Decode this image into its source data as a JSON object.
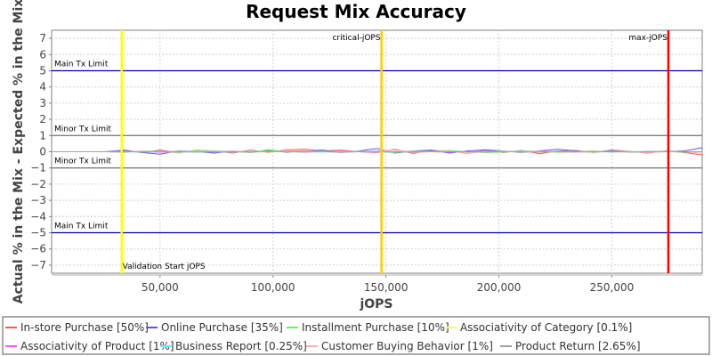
{
  "chart_data": {
    "type": "line",
    "title": "Request Mix Accuracy",
    "xlabel": "jOPS",
    "ylabel": "Actual % in the Mix - Expected % in the Mix",
    "xlim": [
      2000,
      290000
    ],
    "ylim": [
      -7.5,
      7.5
    ],
    "xticks": [
      50000,
      100000,
      150000,
      200000,
      250000
    ],
    "xtick_labels": [
      "50,000",
      "100,000",
      "150,000",
      "200,000",
      "250,000"
    ],
    "yticks": [
      -7,
      -6,
      -5,
      -4,
      -3,
      -2,
      -1,
      0,
      1,
      2,
      3,
      4,
      5,
      6,
      7
    ],
    "grid": true,
    "legend_position": "bottom",
    "x": [
      2000,
      10000,
      18000,
      26000,
      34000,
      42000,
      50000,
      58000,
      66000,
      74000,
      82000,
      90000,
      98000,
      106000,
      114000,
      122000,
      130000,
      138000,
      146000,
      154000,
      162000,
      170000,
      178000,
      186000,
      194000,
      202000,
      210000,
      218000,
      226000,
      234000,
      242000,
      250000,
      258000,
      266000,
      274000,
      282000,
      290000
    ],
    "series": [
      {
        "name": "In-store Purchase [50%]",
        "color": "#ff5555",
        "values": [
          0,
          0,
          0,
          0,
          0.05,
          -0.05,
          0.1,
          -0.05,
          0.08,
          0.05,
          -0.08,
          0.1,
          -0.05,
          0.12,
          0.15,
          0.05,
          0.1,
          0,
          -0.05,
          0.15,
          -0.1,
          0.08,
          0.05,
          -0.1,
          0.1,
          -0.05,
          0.08,
          -0.12,
          0.05,
          0.08,
          -0.05,
          0.1,
          0.02,
          -0.08,
          0.05,
          -0.05,
          -0.2
        ]
      },
      {
        "name": "Online Purchase [35%]",
        "color": "#5555ff",
        "values": [
          0,
          0,
          0,
          0,
          0.1,
          -0.05,
          -0.15,
          0.05,
          0.02,
          -0.08,
          0.05,
          -0.05,
          0.08,
          -0.03,
          0.05,
          0.1,
          -0.05,
          0.05,
          0.2,
          -0.08,
          0.05,
          0.1,
          -0.08,
          0.05,
          0.12,
          0.05,
          -0.05,
          0.05,
          0.15,
          0.05,
          -0.03,
          0.08,
          -0.02,
          0.02,
          0,
          0.05,
          0.25
        ]
      },
      {
        "name": "Installment Purchase [10%]",
        "color": "#55ff55",
        "values": [
          0,
          0,
          0,
          0,
          -0.05,
          0.05,
          0.03,
          -0.08,
          0.1,
          0.05,
          0.02,
          -0.05,
          0.12,
          0,
          -0.03,
          0.05,
          -0.05,
          0.02,
          0,
          -0.05,
          0.05,
          0.02,
          0.08,
          0,
          -0.05,
          -0.02,
          0.05,
          0.03,
          -0.05,
          0,
          0.05,
          -0.03,
          0.02,
          -0.02,
          0,
          -0.02,
          0
        ]
      },
      {
        "name": "Associativity of Category [0.1%]",
        "color": "#ffff55",
        "values": [
          0,
          0,
          0,
          0,
          0,
          0.02,
          0,
          -0.02,
          0,
          0.02,
          0,
          0,
          -0.02,
          0,
          0.02,
          0,
          0,
          0,
          0.02,
          0,
          0,
          -0.02,
          0,
          0,
          0.02,
          0,
          0,
          0,
          -0.02,
          0,
          0,
          0.02,
          0,
          0,
          0,
          0,
          0
        ]
      },
      {
        "name": "Associativity of Product [1%]",
        "color": "#ff55ff",
        "values": [
          0,
          0,
          0,
          0,
          0.03,
          0,
          -0.03,
          0.02,
          0,
          -0.02,
          0.03,
          0,
          0,
          0.02,
          -0.02,
          0,
          0.03,
          0,
          -0.02,
          0,
          0.02,
          0,
          -0.03,
          0,
          0.02,
          0,
          0,
          0.03,
          0,
          -0.02,
          0,
          0.02,
          0,
          0,
          0,
          0,
          0
        ]
      },
      {
        "name": "Business Report [0.25%]",
        "color": "#55ffff",
        "values": [
          0,
          0,
          0,
          0,
          0,
          -0.02,
          0,
          0.02,
          0,
          0,
          -0.02,
          0.02,
          0,
          0,
          0,
          -0.02,
          0,
          0.02,
          0,
          0,
          0,
          0.02,
          0,
          -0.02,
          0,
          0,
          0.02,
          0,
          0,
          0,
          -0.02,
          0,
          0,
          0.02,
          0,
          0,
          0
        ]
      },
      {
        "name": "Customer Buying Behavior [1%]",
        "color": "#ffafaf",
        "values": [
          0,
          0,
          0,
          0,
          -0.03,
          0.05,
          0,
          -0.05,
          0.03,
          0,
          0.05,
          -0.03,
          0,
          0.04,
          0.08,
          0,
          -0.04,
          0,
          0.05,
          0.1,
          -0.05,
          0,
          0.04,
          -0.08,
          0,
          0.05,
          -0.03,
          0,
          0.04,
          0,
          -0.04,
          0.03,
          0,
          -0.05,
          0,
          0,
          -0.1
        ]
      },
      {
        "name": "Product Return [2.65%]",
        "color": "#a0a0a0",
        "values": [
          0,
          0,
          0,
          0,
          0.02,
          -0.02,
          0.03,
          0,
          -0.03,
          0.02,
          0,
          -0.02,
          0.03,
          0,
          0,
          0.02,
          -0.03,
          0,
          0.02,
          0,
          -0.02,
          0.03,
          0,
          0,
          -0.02,
          0.02,
          0,
          -0.03,
          0,
          0.02,
          0,
          0,
          -0.02,
          0,
          0.02,
          0,
          0
        ]
      }
    ],
    "vertical_markers": [
      {
        "label": "Validation Start jOPS",
        "x": 33000,
        "color": "#ffff00"
      },
      {
        "label": "critical-jOPS",
        "x": 148000,
        "color": "#ffcc00"
      },
      {
        "label": "max-jOPS",
        "x": 275000,
        "color": "#ff0000"
      }
    ],
    "horizontal_markers": [
      {
        "label": "Main Tx Limit",
        "y": 5,
        "color": "#0000aa"
      },
      {
        "label": "Minor Tx Limit",
        "y": 1,
        "color": "#808080"
      },
      {
        "label": "Minor Tx Limit",
        "y": -1,
        "color": "#808080"
      },
      {
        "label": "Main Tx Limit",
        "y": -5,
        "color": "#0000aa"
      }
    ]
  }
}
